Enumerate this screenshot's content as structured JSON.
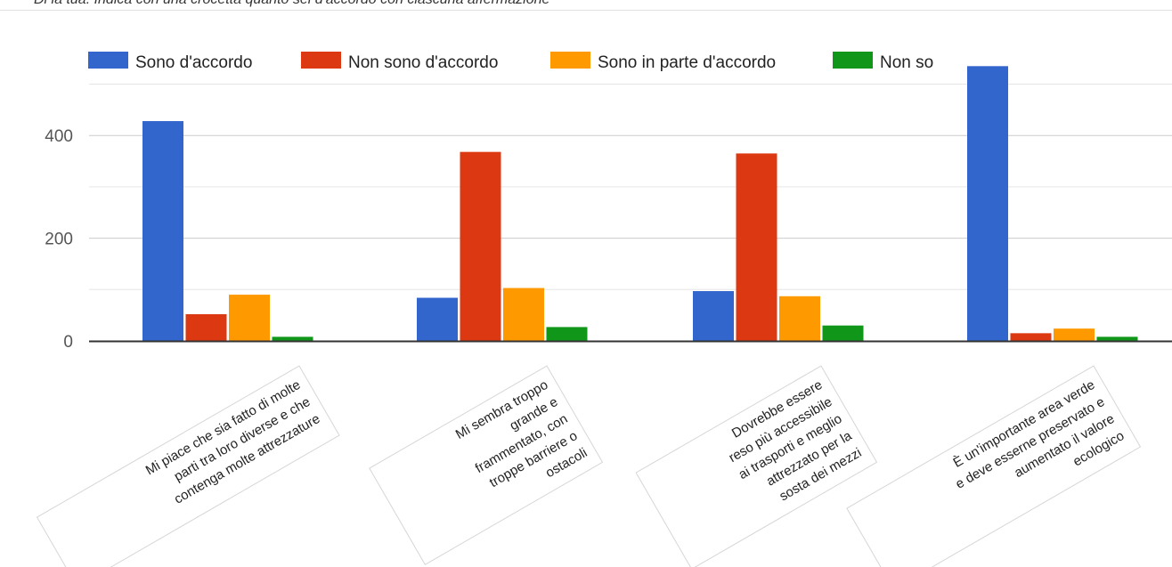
{
  "header": {
    "text": "Di la tua: Indica con una crocetta quanto sei d'accordo con ciascuna affermazione"
  },
  "chart_data": {
    "type": "bar",
    "title": "",
    "xlabel": "",
    "ylabel": "",
    "ylim": [
      0,
      520
    ],
    "yticks": [
      0,
      200,
      400
    ],
    "grid": true,
    "legend_position": "top",
    "categories": [
      [
        "Mi piace che sia fatto di molte",
        "parti tra loro diverse e che",
        "contenga molte attrezzature"
      ],
      [
        "Mi sembra troppo",
        "grande e",
        "frammentato, con",
        "troppe barriere o",
        "ostacoli"
      ],
      [
        "Dovrebbe essere",
        "reso più accessibile",
        "ai trasporti e meglio",
        "attrezzato per la",
        "sosta dei mezzi"
      ],
      [
        "È un'importante area verde",
        "e deve esserne preservato e",
        "aumentato il valore",
        "ecologico"
      ]
    ],
    "series": [
      {
        "name": "Sono d'accordo",
        "color": "#3366cc",
        "values": [
          428,
          84,
          97,
          535
        ]
      },
      {
        "name": "Non sono d'accordo",
        "color": "#dc3912",
        "values": [
          52,
          368,
          365,
          15
        ]
      },
      {
        "name": "Sono in parte d'accordo",
        "color": "#ff9900",
        "values": [
          90,
          103,
          87,
          24
        ]
      },
      {
        "name": "Non so",
        "color": "#109618",
        "values": [
          8,
          27,
          30,
          8
        ]
      }
    ]
  }
}
